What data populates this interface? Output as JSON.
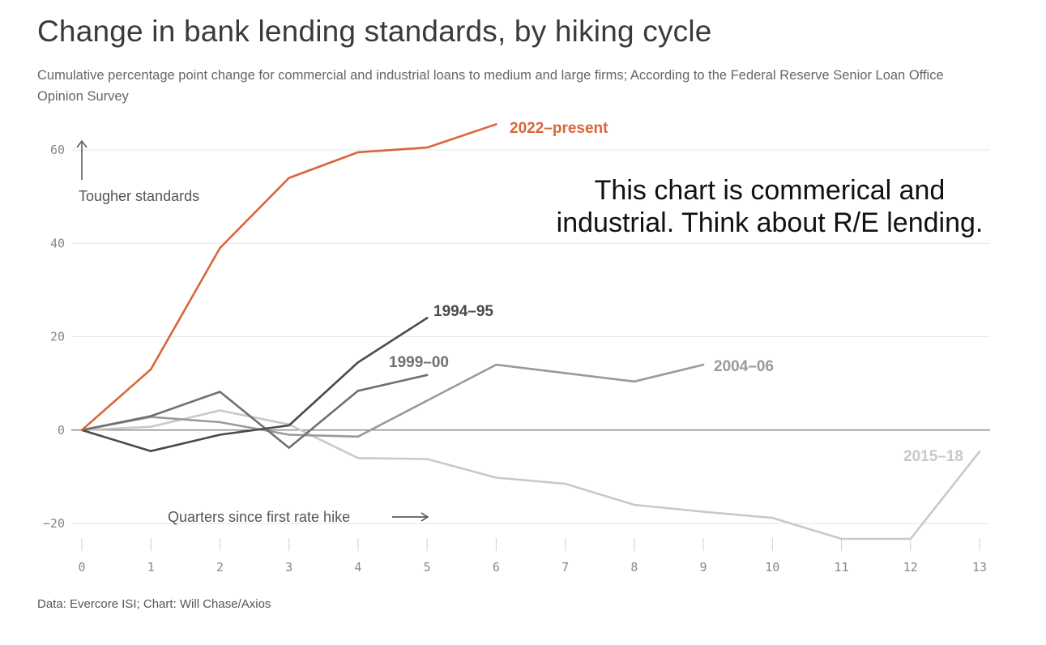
{
  "header": {
    "title": "Change in bank lending standards, by hiking cycle",
    "subtitle": "Cumulative percentage point change for commercial and industrial loans to medium and large firms; According to the Federal Reserve Senior Loan Office Opinion Survey"
  },
  "annotation_box": {
    "line1": "This chart is commerical and",
    "line2": "industrial. Think about R/E lending."
  },
  "footer": {
    "source": "Data: Evercore ISI; Chart: Will Chase/Axios"
  },
  "chart_data": {
    "type": "line",
    "xlabel": "Quarters since first rate hike",
    "ylabel": "Tougher standards",
    "xlim": [
      0,
      13
    ],
    "ylim": [
      -20,
      60
    ],
    "x_ticks": [
      "0",
      "1",
      "2",
      "3",
      "4",
      "5",
      "6",
      "7",
      "8",
      "9",
      "10",
      "11",
      "12",
      "13"
    ],
    "y_ticks": [
      {
        "value": 60,
        "label": "60"
      },
      {
        "value": 40,
        "label": "40"
      },
      {
        "value": 20,
        "label": "20"
      },
      {
        "value": 0,
        "label": "0"
      },
      {
        "value": -20,
        "label": "−20"
      }
    ],
    "grid": true,
    "series": [
      {
        "name": "2022–present",
        "color": "#d9663a",
        "x": [
          0,
          1,
          2,
          3,
          4,
          5,
          6
        ],
        "values": [
          0,
          13,
          39,
          54,
          59.5,
          60.5,
          65.5
        ]
      },
      {
        "name": "1994–95",
        "color": "#4a4a4a",
        "x": [
          0,
          1,
          2,
          3,
          4,
          5
        ],
        "values": [
          0,
          -4.5,
          -1,
          1,
          14.5,
          24
        ]
      },
      {
        "name": "1999–00",
        "color": "#707070",
        "x": [
          0,
          1,
          2,
          3,
          4,
          5
        ],
        "values": [
          0,
          3,
          8.2,
          -3.8,
          8.4,
          11.8
        ]
      },
      {
        "name": "2004–06",
        "color": "#9a9a9a",
        "x": [
          0,
          1,
          2,
          3,
          4,
          5,
          6,
          7,
          8,
          9
        ],
        "values": [
          0,
          2.8,
          1.7,
          -1,
          -1.4,
          6.3,
          14,
          12.2,
          10.4,
          14
        ]
      },
      {
        "name": "2015–18",
        "color": "#c9c9c9",
        "x": [
          0,
          1,
          2,
          3,
          4,
          5,
          6,
          7,
          8,
          9,
          10,
          11,
          12,
          13
        ],
        "values": [
          0,
          0.7,
          4.2,
          1.2,
          -6,
          -6.2,
          -10.2,
          -11.5,
          -16,
          -17.5,
          -18.8,
          -23.3,
          -23.3,
          -4.6
        ]
      }
    ]
  }
}
